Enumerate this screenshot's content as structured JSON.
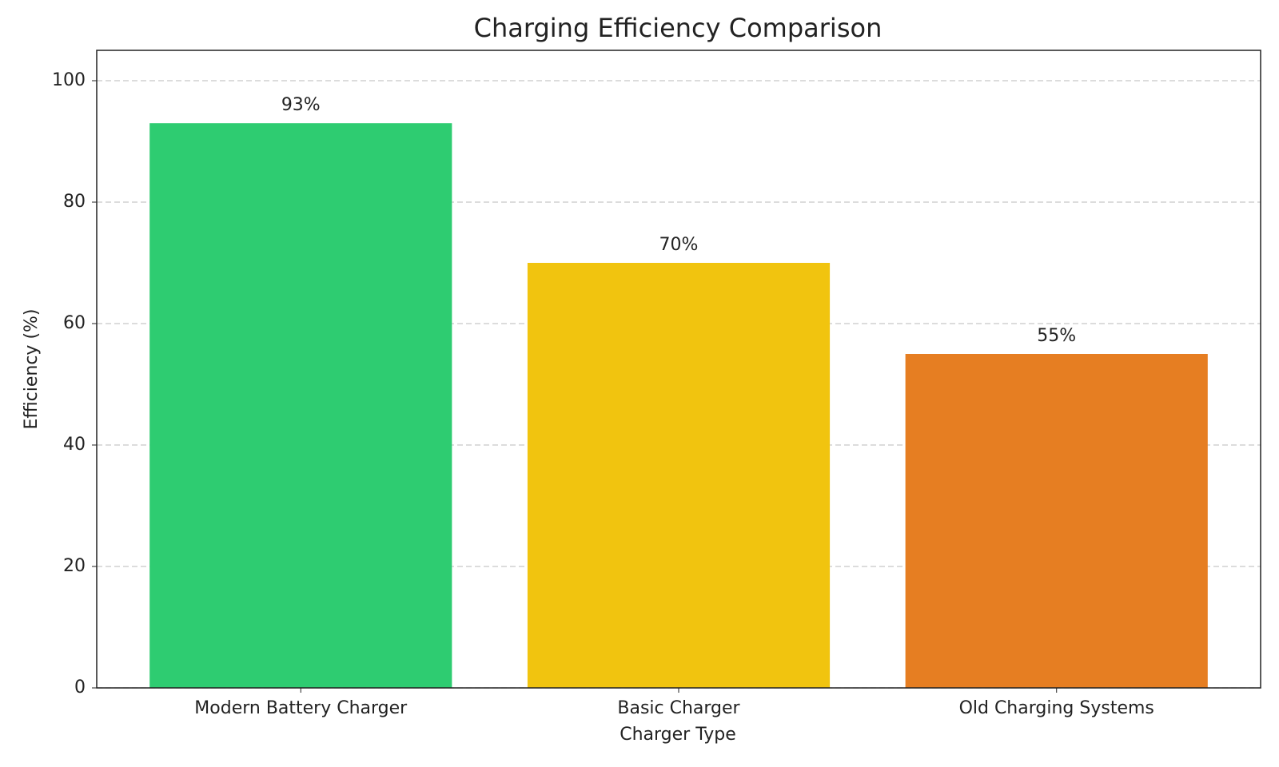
{
  "chart_data": {
    "type": "bar",
    "title": "Charging Efficiency Comparison",
    "x_label": "Charger Type",
    "y_label": "Efficiency (%)",
    "categories": [
      "Modern Battery Charger",
      "Basic Charger",
      "Old Charging Systems"
    ],
    "values": [
      93,
      70,
      55
    ],
    "value_labels": [
      "93%",
      "70%",
      "55%"
    ],
    "colors": [
      "#2ecc71",
      "#f1c40f",
      "#e67e22"
    ],
    "ylim": [
      0,
      105
    ],
    "yticks": [
      0,
      20,
      40,
      60,
      80,
      100
    ],
    "grid": true
  }
}
